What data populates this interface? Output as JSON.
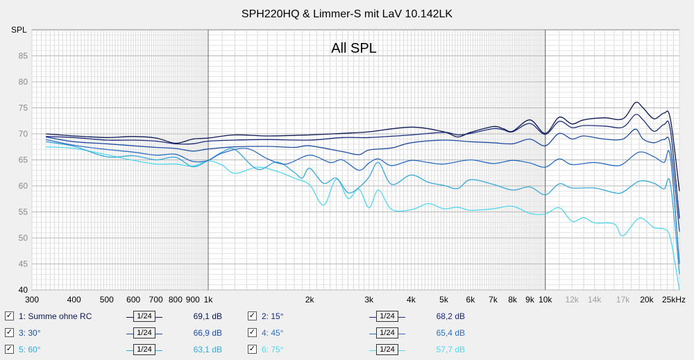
{
  "title": "SPH220HQ & Limmer-S mit LaV 10.142LK",
  "chart_data": {
    "type": "line",
    "title": "SPH220HQ & Limmer-S mit LaV 10.142LK",
    "subtitle": "All SPL",
    "ylabel": "SPL",
    "xlabel": "",
    "xscale": "log",
    "xlim": [
      300,
      25000
    ],
    "ylim": [
      40,
      90
    ],
    "grid": true,
    "y_ticks": [
      {
        "v": 40,
        "label": "40"
      },
      {
        "v": 45,
        "label": "45"
      },
      {
        "v": 50,
        "label": "50"
      },
      {
        "v": 55,
        "label": "55"
      },
      {
        "v": 60,
        "label": "60"
      },
      {
        "v": 65,
        "label": "65"
      },
      {
        "v": 70,
        "label": "70"
      },
      {
        "v": 75,
        "label": "75"
      },
      {
        "v": 80,
        "label": "80"
      },
      {
        "v": 85,
        "label": "85"
      }
    ],
    "x_ticks": [
      {
        "v": 300,
        "label": "300"
      },
      {
        "v": 400,
        "label": "400"
      },
      {
        "v": 500,
        "label": "500"
      },
      {
        "v": 600,
        "label": "600"
      },
      {
        "v": 700,
        "label": "700"
      },
      {
        "v": 800,
        "label": "800"
      },
      {
        "v": 900,
        "label": "900"
      },
      {
        "v": 1000,
        "label": "1k"
      },
      {
        "v": 2000,
        "label": "2k"
      },
      {
        "v": 3000,
        "label": "3k"
      },
      {
        "v": 4000,
        "label": "4k"
      },
      {
        "v": 5000,
        "label": "5k"
      },
      {
        "v": 6000,
        "label": "6k"
      },
      {
        "v": 7000,
        "label": "7k"
      },
      {
        "v": 8000,
        "label": "8k"
      },
      {
        "v": 9000,
        "label": "9k"
      },
      {
        "v": 10000,
        "label": "10k"
      },
      {
        "v": 12000,
        "label": "12k"
      },
      {
        "v": 14000,
        "label": "14k"
      },
      {
        "v": 17000,
        "label": "17k"
      },
      {
        "v": 20000,
        "label": "20k"
      },
      {
        "v": 25000,
        "label": "25kHz"
      }
    ],
    "x_ticks_faded": [
      12000,
      14000,
      17000
    ],
    "series": [
      {
        "name": "1: Summe ohne RC",
        "color": "#0a1650",
        "level": "69,1 dB",
        "x": [
          330,
          400,
          500,
          600,
          700,
          800,
          900,
          1000,
          1200,
          1500,
          2000,
          2500,
          3000,
          4000,
          5000,
          5500,
          6000,
          7000,
          7500,
          8000,
          9000,
          10000,
          11000,
          12000,
          13000,
          15000,
          17000,
          18500,
          19500,
          21000,
          22500,
          23500,
          25000
        ],
        "y": [
          70.0,
          69.6,
          69.3,
          69.5,
          69.2,
          68.2,
          69.0,
          69.2,
          69.8,
          69.6,
          69.8,
          70.1,
          70.4,
          71.3,
          70.4,
          69.4,
          70.3,
          71.4,
          71.0,
          70.5,
          72.7,
          70.1,
          73.2,
          71.9,
          72.7,
          73.1,
          72.9,
          76.0,
          75.0,
          72.9,
          74.0,
          72.9,
          59.0
        ]
      },
      {
        "name": "2: 15°",
        "color": "#1a2a78",
        "level": "68,2 dB",
        "x": [
          330,
          400,
          500,
          600,
          700,
          800,
          900,
          1000,
          1200,
          1500,
          2000,
          2500,
          3000,
          4000,
          5000,
          5500,
          6000,
          7000,
          7500,
          8000,
          9000,
          10000,
          11000,
          12000,
          13000,
          15000,
          17000,
          18500,
          19500,
          21000,
          22500,
          23500,
          25000
        ],
        "y": [
          69.5,
          69.3,
          68.8,
          68.8,
          68.6,
          68.1,
          68.1,
          68.6,
          68.8,
          68.9,
          68.8,
          69.3,
          69.3,
          69.8,
          70.3,
          69.8,
          70.1,
          71.0,
          70.8,
          70.4,
          72.0,
          69.9,
          72.4,
          71.2,
          71.6,
          71.5,
          71.3,
          73.7,
          72.7,
          70.5,
          71.8,
          70.8,
          53.7
        ]
      },
      {
        "name": "3: 30°",
        "color": "#1f4da0",
        "level": "66,9 dB",
        "x": [
          330,
          400,
          500,
          600,
          700,
          800,
          900,
          1000,
          1200,
          1500,
          1800,
          2000,
          2500,
          2800,
          3000,
          3500,
          4000,
          5000,
          6000,
          7000,
          8000,
          9000,
          10000,
          11000,
          12000,
          13000,
          15000,
          17000,
          18500,
          19500,
          21000,
          22500,
          23500,
          25000
        ],
        "y": [
          69.4,
          68.5,
          68.1,
          67.7,
          67.4,
          67.2,
          66.7,
          67.1,
          67.5,
          67.6,
          67.4,
          67.7,
          66.6,
          66.0,
          66.9,
          67.3,
          68.3,
          68.8,
          68.5,
          68.3,
          68.1,
          69.0,
          67.7,
          70.1,
          69.0,
          69.6,
          69.0,
          69.0,
          70.9,
          69.0,
          68.3,
          68.9,
          67.7,
          51.2
        ]
      },
      {
        "name": "4: 45°",
        "color": "#2e6ec0",
        "level": "65,4 dB",
        "x": [
          330,
          400,
          500,
          600,
          700,
          800,
          900,
          1000,
          1100,
          1300,
          1500,
          1700,
          2000,
          2300,
          2500,
          2800,
          3000,
          3200,
          3500,
          4000,
          4500,
          5000,
          6000,
          7000,
          8000,
          9000,
          10000,
          11000,
          12000,
          14000,
          16000,
          17000,
          19000,
          21000,
          22500,
          23500,
          25000
        ],
        "y": [
          68.9,
          67.8,
          67.0,
          66.5,
          65.9,
          66.1,
          64.7,
          64.9,
          66.3,
          67.2,
          65.2,
          64.2,
          65.9,
          64.5,
          65.0,
          63.0,
          64.4,
          65.2,
          63.9,
          64.9,
          64.5,
          64.2,
          65.0,
          64.3,
          64.9,
          64.4,
          63.6,
          65.2,
          64.1,
          64.5,
          63.9,
          64.2,
          66.5,
          65.6,
          64.5,
          65.6,
          45.0
        ]
      },
      {
        "name": "5: 60°",
        "color": "#36a8d8",
        "level": "63,1 dB",
        "x": [
          330,
          400,
          500,
          600,
          700,
          800,
          900,
          1000,
          1100,
          1200,
          1400,
          1600,
          1800,
          1900,
          2000,
          2200,
          2400,
          2600,
          2800,
          3000,
          3200,
          3500,
          4000,
          4500,
          5000,
          5500,
          6000,
          7000,
          8000,
          9000,
          10000,
          11000,
          12000,
          14000,
          16000,
          17000,
          19000,
          21000,
          22500,
          23500,
          25000
        ],
        "y": [
          68.5,
          67.6,
          65.6,
          65.8,
          65.0,
          65.5,
          63.7,
          64.9,
          66.5,
          67.0,
          63.2,
          64.6,
          62.6,
          61.5,
          63.4,
          60.5,
          61.5,
          58.7,
          59.7,
          61.7,
          64.5,
          60.3,
          62.1,
          60.7,
          60.1,
          59.5,
          61.2,
          60.3,
          59.2,
          59.8,
          58.3,
          60.4,
          59.6,
          59.6,
          58.7,
          58.8,
          60.9,
          60.5,
          59.4,
          60.4,
          43.0
        ]
      },
      {
        "name": "6: 75°",
        "color": "#52d8ee",
        "level": "57,7 dB",
        "x": [
          330,
          400,
          500,
          600,
          700,
          800,
          900,
          1000,
          1100,
          1200,
          1400,
          1600,
          1800,
          2000,
          2200,
          2400,
          2600,
          2800,
          3000,
          3200,
          3500,
          4000,
          4500,
          5000,
          5500,
          6000,
          7000,
          8000,
          9000,
          10000,
          11000,
          12000,
          13000,
          14000,
          16000,
          17000,
          19000,
          21000,
          22500,
          23500,
          25000
        ],
        "y": [
          67.5,
          67.2,
          66.0,
          64.9,
          64.2,
          64.2,
          63.8,
          64.8,
          64.0,
          62.4,
          63.6,
          62.8,
          61.5,
          60.2,
          56.3,
          61.3,
          57.6,
          59.4,
          55.8,
          59.2,
          55.5,
          55.4,
          56.6,
          55.6,
          55.9,
          55.3,
          55.6,
          56.1,
          54.7,
          54.6,
          55.8,
          53.2,
          53.9,
          52.9,
          52.7,
          50.4,
          53.8,
          52.0,
          51.7,
          50.0,
          40.0
        ]
      }
    ]
  },
  "legend": {
    "smoothing_label": "1/24",
    "items": [
      {
        "label": "1: Summe ohne RC",
        "level": "69,1 dB",
        "checked": "✓",
        "color": "#0a1650"
      },
      {
        "label": "2: 15°",
        "level": "68,2 dB",
        "checked": "✓",
        "color": "#1a2a78"
      },
      {
        "label": "3: 30°",
        "level": "66,9 dB",
        "checked": "✓",
        "color": "#1f4da0"
      },
      {
        "label": "4: 45°",
        "level": "65,4 dB",
        "checked": "✓",
        "color": "#2e6ec0"
      },
      {
        "label": "5: 60°",
        "level": "63,1 dB",
        "checked": "✓",
        "color": "#36a8d8"
      },
      {
        "label": "6: 75°",
        "level": "57,7 dB",
        "checked": "✓",
        "color": "#52d8ee"
      }
    ]
  }
}
